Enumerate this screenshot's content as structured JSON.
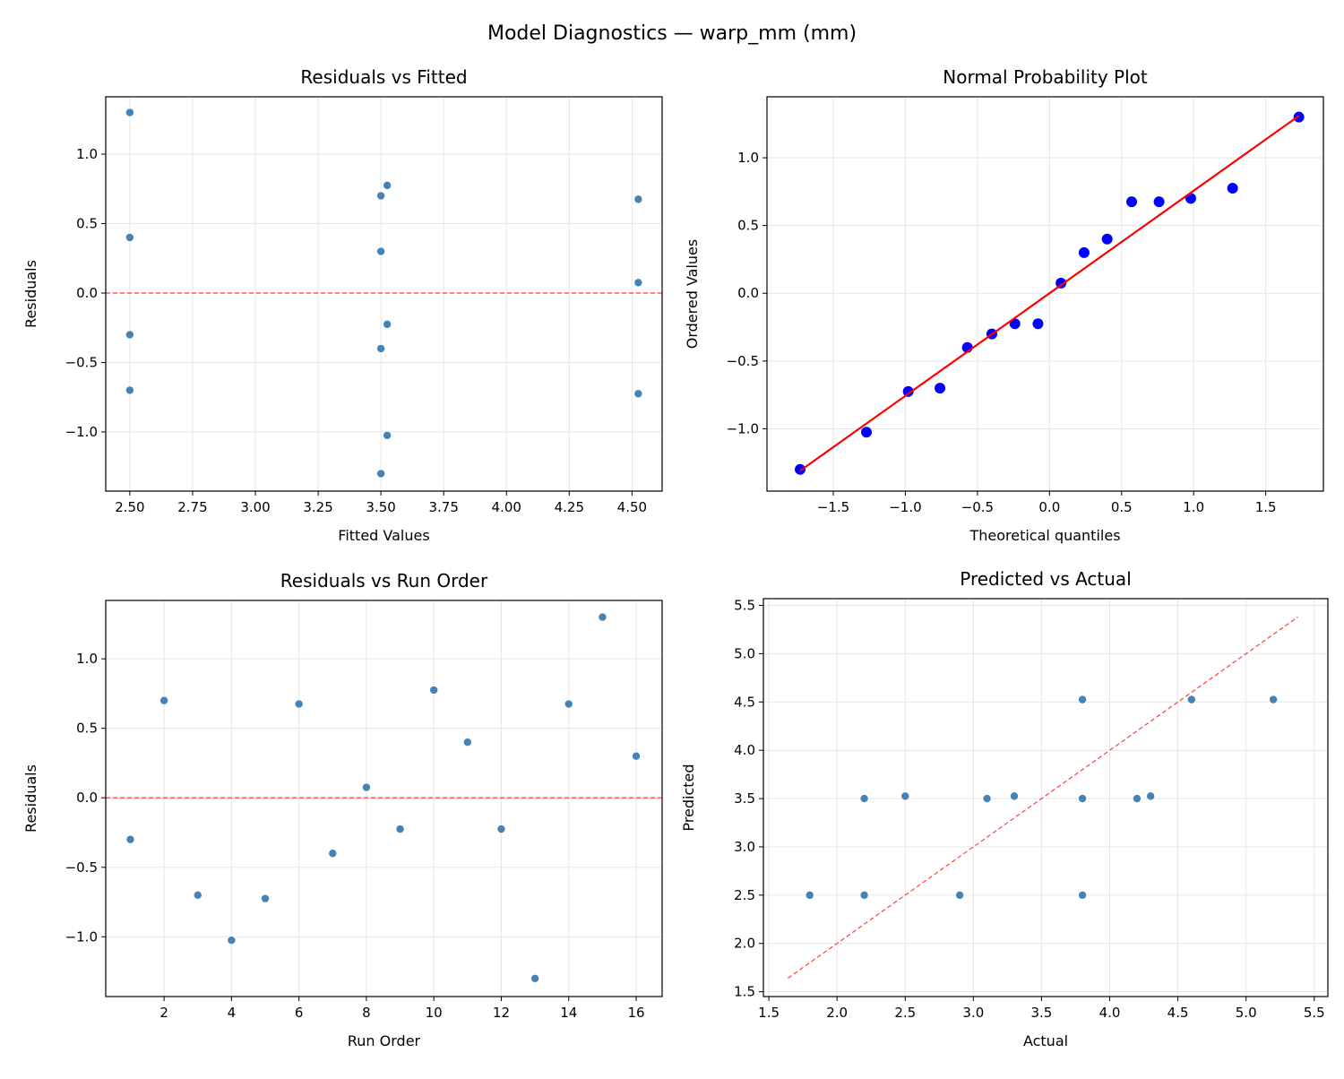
{
  "suptitle": "Model Diagnostics — warp_mm (mm)",
  "colors": {
    "marker": "#4682b4",
    "qq_marker": "#0000ff",
    "fit_line": "#ff0000",
    "ref_line": "#ff0000",
    "grid": "#e6e6e6"
  },
  "chart_data": [
    {
      "type": "scatter",
      "title": "Residuals vs Fitted",
      "xlabel": "Fitted Values",
      "ylabel": "Residuals",
      "xlim": [
        2.404,
        4.62
      ],
      "ylim": [
        -1.426,
        1.413
      ],
      "grid": true,
      "xticks": [
        2.5,
        2.75,
        3.0,
        3.25,
        3.5,
        3.75,
        4.0,
        4.25,
        4.5
      ],
      "xtick_labels": [
        "2.50",
        "2.75",
        "3.00",
        "3.25",
        "3.50",
        "3.75",
        "4.00",
        "4.25",
        "4.50"
      ],
      "yticks": [
        -1.0,
        -0.5,
        0.0,
        0.5,
        1.0
      ],
      "ytick_labels": [
        "−1.0",
        "−0.5",
        "0.0",
        "0.5",
        "1.0"
      ],
      "x": [
        2.5,
        3.5,
        2.5,
        3.525,
        4.525,
        4.525,
        3.5,
        4.525,
        3.525,
        3.525,
        2.5,
        3.525,
        3.5,
        4.525,
        2.5,
        3.5
      ],
      "y": [
        -0.3,
        0.7,
        -0.7,
        -1.025,
        -0.725,
        0.675,
        -0.4,
        0.075,
        -0.225,
        0.775,
        0.4,
        -0.225,
        -1.3,
        0.675,
        1.3,
        0.3
      ],
      "reference_line": {
        "kind": "horizontal",
        "y": 0,
        "style": "dashed"
      }
    },
    {
      "type": "scatter",
      "title": "Normal Probability Plot",
      "xlabel": "Theoretical quantiles",
      "ylabel": "Ordered Values",
      "xlim": [
        -1.96,
        1.9
      ],
      "ylim": [
        -1.46,
        1.45
      ],
      "grid": true,
      "xticks": [
        -1.5,
        -1.0,
        -0.5,
        0.0,
        0.5,
        1.0,
        1.5
      ],
      "xtick_labels": [
        "−1.5",
        "−1.0",
        "−0.5",
        "0.0",
        "0.5",
        "1.0",
        "1.5"
      ],
      "yticks": [
        -1.0,
        -0.5,
        0.0,
        0.5,
        1.0
      ],
      "ytick_labels": [
        "−1.0",
        "−0.5",
        "0.0",
        "0.5",
        "1.0"
      ],
      "x": [
        -1.73,
        -1.27,
        -0.98,
        -0.76,
        -0.57,
        -0.4,
        -0.24,
        -0.08,
        0.08,
        0.24,
        0.4,
        0.57,
        0.76,
        0.98,
        1.27,
        1.73
      ],
      "y": [
        -1.3,
        -1.025,
        -0.725,
        -0.7,
        -0.4,
        -0.3,
        -0.225,
        -0.225,
        0.075,
        0.3,
        0.4,
        0.675,
        0.675,
        0.7,
        0.775,
        1.3
      ],
      "fit_line": {
        "slope": 0.757,
        "intercept": 0.0,
        "x_range": [
          -1.73,
          1.73
        ],
        "style": "solid"
      }
    },
    {
      "type": "scatter",
      "title": "Residuals vs Run Order",
      "xlabel": "Run Order",
      "ylabel": "Residuals",
      "xlim": [
        0.27,
        16.77
      ],
      "ylim": [
        -1.43,
        1.42
      ],
      "grid": true,
      "xticks": [
        2,
        4,
        6,
        8,
        10,
        12,
        14,
        16
      ],
      "xtick_labels": [
        "2",
        "4",
        "6",
        "8",
        "10",
        "12",
        "14",
        "16"
      ],
      "yticks": [
        -1.0,
        -0.5,
        0.0,
        0.5,
        1.0
      ],
      "ytick_labels": [
        "−1.0",
        "−0.5",
        "0.0",
        "0.5",
        "1.0"
      ],
      "x": [
        1,
        2,
        3,
        4,
        5,
        6,
        7,
        8,
        9,
        10,
        11,
        12,
        13,
        14,
        15,
        16
      ],
      "y": [
        -0.3,
        0.7,
        -0.7,
        -1.025,
        -0.725,
        0.675,
        -0.4,
        0.075,
        -0.225,
        0.775,
        0.4,
        -0.225,
        -1.3,
        0.675,
        1.3,
        0.3
      ],
      "reference_line": {
        "kind": "horizontal",
        "y": 0,
        "style": "dashed"
      }
    },
    {
      "type": "scatter",
      "title": "Predicted vs Actual",
      "xlabel": "Actual",
      "ylabel": "Predicted",
      "xlim": [
        1.46,
        5.6
      ],
      "ylim": [
        1.45,
        5.57
      ],
      "grid": true,
      "xticks": [
        1.5,
        2.0,
        2.5,
        3.0,
        3.5,
        4.0,
        4.5,
        5.0,
        5.5
      ],
      "xtick_labels": [
        "1.5",
        "2.0",
        "2.5",
        "3.0",
        "3.5",
        "4.0",
        "4.5",
        "5.0",
        "5.5"
      ],
      "yticks": [
        1.5,
        2.0,
        2.5,
        3.0,
        3.5,
        4.0,
        4.5,
        5.0,
        5.5
      ],
      "ytick_labels": [
        "1.5",
        "2.0",
        "2.5",
        "3.0",
        "3.5",
        "4.0",
        "4.5",
        "5.0",
        "5.5"
      ],
      "x": [
        2.2,
        4.2,
        1.8,
        2.5,
        3.8,
        5.2,
        3.1,
        4.6,
        3.3,
        4.3,
        2.9,
        3.3,
        2.2,
        5.2,
        3.8,
        3.8
      ],
      "y": [
        2.5,
        3.5,
        2.5,
        3.525,
        4.525,
        4.525,
        3.5,
        4.525,
        3.525,
        3.525,
        2.5,
        3.525,
        3.5,
        4.525,
        2.5,
        3.5
      ],
      "reference_line": {
        "kind": "diagonal",
        "range": [
          1.64,
          5.38
        ],
        "style": "dashed"
      }
    }
  ]
}
